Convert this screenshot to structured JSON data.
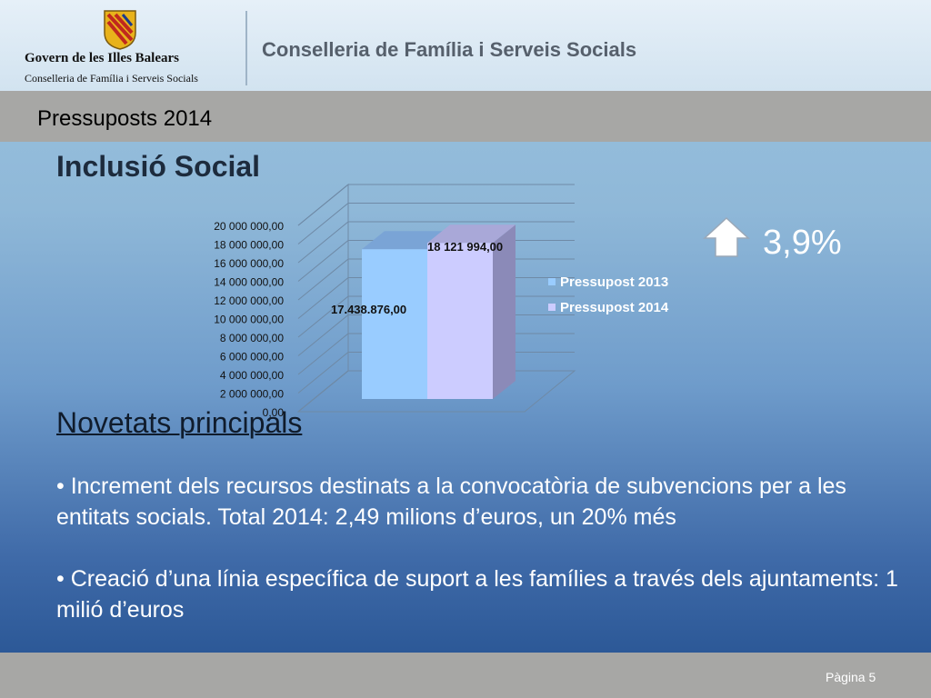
{
  "header": {
    "org_name": "Govern de les Illes Balears",
    "org_department": "Conselleria de Família i Serveis Socials",
    "title": "Conselleria de Família i Serveis Socials",
    "logo_icon": "coat-of-arms-icon"
  },
  "band": {
    "title": "Pressuposts 2014"
  },
  "section": {
    "title": "Inclusió Social"
  },
  "chart_data": {
    "type": "bar",
    "categories": [
      "Pressupost  2013",
      "Pressupost 2014"
    ],
    "values": [
      17438876,
      18121994
    ],
    "value_labels": [
      "17.438.876,00",
      "18 121 994,00"
    ],
    "colors": [
      "#99ccff",
      "#ccccff"
    ],
    "ylim": [
      0,
      20000000
    ],
    "yticks": [
      "0,00",
      "2 000 000,00",
      "4 000 000,00",
      "6 000 000,00",
      "8 000 000,00",
      "10 000 000,00",
      "12 000 000,00",
      "14 000 000,00",
      "16 000 000,00",
      "18 000 000,00",
      "20 000 000,00"
    ],
    "legend": [
      "Pressupost  2013",
      "Pressupost 2014"
    ],
    "legend_position": "right",
    "grid": true,
    "three_d": true
  },
  "change": {
    "value": "3,9%",
    "icon": "up-arrow-icon"
  },
  "news": {
    "title": "Novetats principals",
    "bullets": [
      "• Increment dels recursos destinats a la convocatòria de subvencions per a les entitats socials. Total 2014: 2,49 milions d’euros, un 20% més",
      "• Creació d’una línia específica de suport a les famílies a través dels ajuntaments: 1 milió d’euros"
    ]
  },
  "footer": {
    "page": "Pàgina 5"
  }
}
